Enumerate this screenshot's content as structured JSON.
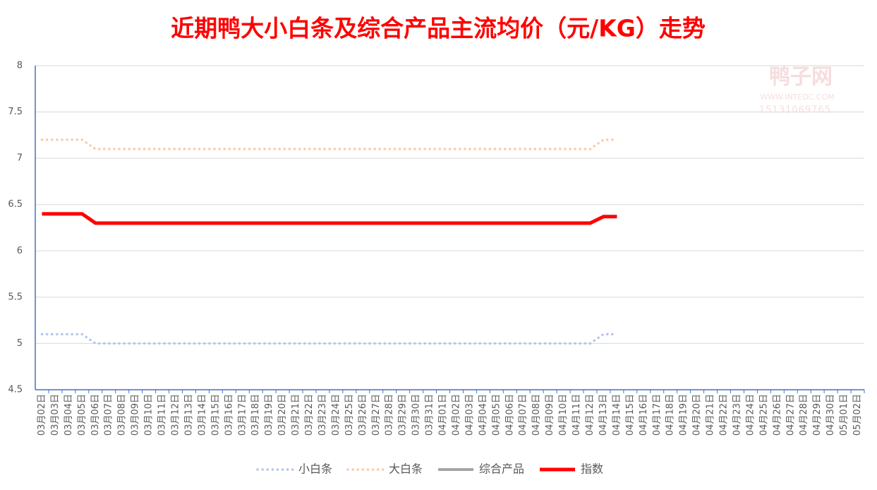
{
  "chart_data": {
    "type": "line",
    "title": "近期鸭大小白条及综合产品主流均价（元/KG）走势",
    "watermark": {
      "name": "鸭子网",
      "url": "WWW.INTEDC.COM",
      "phone": "15131069765"
    },
    "categories": [
      "03月02日",
      "03月03日",
      "03月04日",
      "03月05日",
      "03月06日",
      "03月07日",
      "03月08日",
      "03月09日",
      "03月10日",
      "03月11日",
      "03月12日",
      "03月13日",
      "03月14日",
      "03月15日",
      "03月16日",
      "03月17日",
      "03月18日",
      "03月19日",
      "03月20日",
      "03月21日",
      "03月22日",
      "03月23日",
      "03月24日",
      "03月25日",
      "03月26日",
      "03月27日",
      "03月28日",
      "03月29日",
      "03月30日",
      "03月31日",
      "04月01日",
      "04月02日",
      "04月03日",
      "04月04日",
      "04月05日",
      "04月06日",
      "04月07日",
      "04月08日",
      "04月09日",
      "04月10日",
      "04月11日",
      "04月12日",
      "04月13日",
      "04月14日",
      "04月15日",
      "04月16日",
      "04月17日",
      "04月18日",
      "04月19日",
      "04月20日",
      "04月21日",
      "04月22日",
      "04月23日",
      "04月24日",
      "04月25日",
      "04月26日",
      "04月27日",
      "04月28日",
      "04月29日",
      "04月30日",
      "05月01日",
      "05月02日"
    ],
    "series": [
      {
        "name": "小白条",
        "color": "#b4c7e7",
        "style": "dotted",
        "values": [
          5.1,
          5.1,
          5.1,
          5.1,
          5,
          5,
          5,
          5,
          5,
          5,
          5,
          5,
          5,
          5,
          5,
          5,
          5,
          5,
          5,
          5,
          5,
          5,
          5,
          5,
          5,
          5,
          5,
          5,
          5,
          5,
          5,
          5,
          5,
          5,
          5,
          5,
          5,
          5,
          5,
          5,
          5,
          5,
          5.1,
          5.1,
          null,
          null,
          null,
          null,
          null,
          null,
          null,
          null,
          null,
          null,
          null,
          null,
          null,
          null,
          null,
          null,
          null,
          null
        ]
      },
      {
        "name": "大白条",
        "color": "#f8cbad",
        "style": "dotted",
        "values": [
          7.2,
          7.2,
          7.2,
          7.2,
          7.1,
          7.1,
          7.1,
          7.1,
          7.1,
          7.1,
          7.1,
          7.1,
          7.1,
          7.1,
          7.1,
          7.1,
          7.1,
          7.1,
          7.1,
          7.1,
          7.1,
          7.1,
          7.1,
          7.1,
          7.1,
          7.1,
          7.1,
          7.1,
          7.1,
          7.1,
          7.1,
          7.1,
          7.1,
          7.1,
          7.1,
          7.1,
          7.1,
          7.1,
          7.1,
          7.1,
          7.1,
          7.1,
          7.2,
          7.2,
          null,
          null,
          null,
          null,
          null,
          null,
          null,
          null,
          null,
          null,
          null,
          null,
          null,
          null,
          null,
          null,
          null,
          null
        ]
      },
      {
        "name": "综合产品",
        "color": "#a5a5a5",
        "style": "solid",
        "values": [
          6.4,
          6.4,
          6.4,
          6.4,
          6.3,
          6.3,
          6.3,
          6.3,
          6.3,
          6.3,
          6.3,
          6.3,
          6.3,
          6.3,
          6.3,
          6.3,
          6.3,
          6.3,
          6.3,
          6.3,
          6.3,
          6.3,
          6.3,
          6.3,
          6.3,
          6.3,
          6.3,
          6.3,
          6.3,
          6.3,
          6.3,
          6.3,
          6.3,
          6.3,
          6.3,
          6.3,
          6.3,
          6.3,
          6.3,
          6.3,
          6.3,
          6.3,
          6.37,
          6.37,
          null,
          null,
          null,
          null,
          null,
          null,
          null,
          null,
          null,
          null,
          null,
          null,
          null,
          null,
          null,
          null,
          null,
          null
        ]
      },
      {
        "name": "指数",
        "color": "#ff0000",
        "style": "thick",
        "values": [
          6.4,
          6.4,
          6.4,
          6.4,
          6.3,
          6.3,
          6.3,
          6.3,
          6.3,
          6.3,
          6.3,
          6.3,
          6.3,
          6.3,
          6.3,
          6.3,
          6.3,
          6.3,
          6.3,
          6.3,
          6.3,
          6.3,
          6.3,
          6.3,
          6.3,
          6.3,
          6.3,
          6.3,
          6.3,
          6.3,
          6.3,
          6.3,
          6.3,
          6.3,
          6.3,
          6.3,
          6.3,
          6.3,
          6.3,
          6.3,
          6.3,
          6.3,
          6.37,
          6.37,
          null,
          null,
          null,
          null,
          null,
          null,
          null,
          null,
          null,
          null,
          null,
          null,
          null,
          null,
          null,
          null,
          null,
          null
        ]
      }
    ],
    "ylim": [
      4.5,
      8
    ],
    "yticks": [
      4.5,
      5,
      5.5,
      6,
      6.5,
      7,
      7.5,
      8
    ],
    "grid": true,
    "legend": "bottom"
  }
}
